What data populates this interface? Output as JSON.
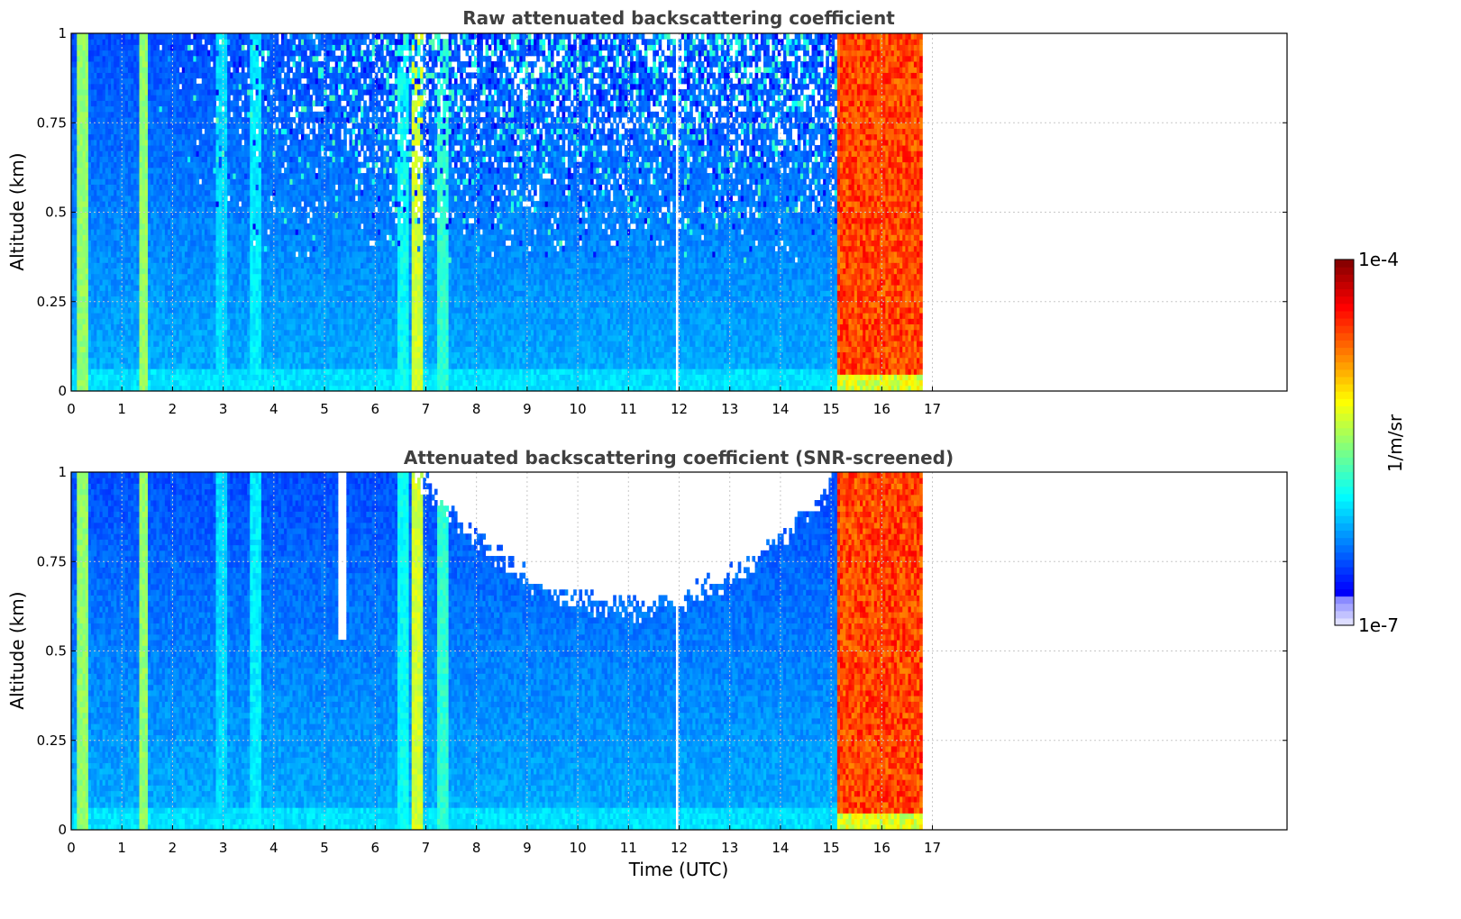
{
  "chart_data": [
    {
      "type": "heatmap",
      "title": "Raw attenuated backscattering coefficient",
      "xlabel": "",
      "ylabel": "Altitude (km)",
      "xlim": [
        0,
        24
      ],
      "ylim": [
        0,
        1
      ],
      "xticks": [
        "0",
        "1",
        "2",
        "3",
        "4",
        "5",
        "6",
        "7",
        "8",
        "9",
        "10",
        "11",
        "12",
        "13",
        "14",
        "15",
        "16",
        "17"
      ],
      "yticks": [
        "0",
        "0.25",
        "0.5",
        "0.75",
        "1"
      ],
      "grid": true,
      "data_end_hour": 16.8,
      "gap_hours": [
        11.95
      ],
      "cloud_start_hour": 15.1,
      "bands": [
        {
          "x": 0.22,
          "level": 0.52
        },
        {
          "x": 1.43,
          "level": 0.52
        },
        {
          "x": 2.98,
          "level": 0.34
        },
        {
          "x": 3.65,
          "level": 0.36
        },
        {
          "x": 6.55,
          "level": 0.38
        },
        {
          "x": 6.85,
          "level": 0.58
        },
        {
          "x": 7.32,
          "level": 0.42
        }
      ],
      "noise_top": true,
      "screened": false
    },
    {
      "type": "heatmap",
      "title": "Attenuated backscattering coefficient (SNR-screened)",
      "xlabel": "Time (UTC)",
      "ylabel": "Altitude (km)",
      "xlim": [
        0,
        24
      ],
      "ylim": [
        0,
        1
      ],
      "xticks": [
        "0",
        "1",
        "2",
        "3",
        "4",
        "5",
        "6",
        "7",
        "8",
        "9",
        "10",
        "11",
        "12",
        "13",
        "14",
        "15",
        "16",
        "17"
      ],
      "yticks": [
        "0",
        "0.25",
        "0.5",
        "0.75",
        "1"
      ],
      "grid": true,
      "data_end_hour": 16.8,
      "gap_hours": [
        11.95
      ],
      "cloud_start_hour": 15.1,
      "bands": [
        {
          "x": 0.22,
          "level": 0.52
        },
        {
          "x": 1.43,
          "level": 0.52
        },
        {
          "x": 2.98,
          "level": 0.34
        },
        {
          "x": 3.65,
          "level": 0.36
        },
        {
          "x": 6.55,
          "level": 0.38
        },
        {
          "x": 6.85,
          "level": 0.58
        },
        {
          "x": 7.32,
          "level": 0.42
        }
      ],
      "noise_top": false,
      "screened": true
    }
  ],
  "colorbar": {
    "max_label": "1e-4",
    "min_label": "1e-7",
    "unit_label": "1/m/sr",
    "scale": "log"
  }
}
